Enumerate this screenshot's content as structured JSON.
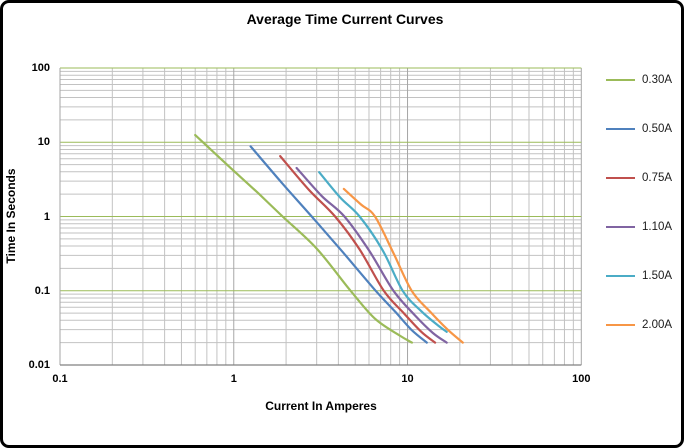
{
  "window": {
    "background": "#ffffff",
    "border_color": "#000000"
  },
  "chart_data": {
    "type": "line",
    "title": "Average Time Current Curves",
    "xlabel": "Current In Amperes",
    "ylabel": "Time In Seconds",
    "x_scale": "log",
    "y_scale": "log",
    "xlim": [
      0.1,
      100
    ],
    "ylim": [
      0.01,
      100
    ],
    "x_ticks": [
      {
        "value": 0.1,
        "label": "0.1"
      },
      {
        "value": 1,
        "label": "1"
      },
      {
        "value": 10,
        "label": "10"
      },
      {
        "value": 100,
        "label": "100"
      }
    ],
    "y_ticks": [
      {
        "value": 100,
        "label": "100"
      },
      {
        "value": 10,
        "label": "10"
      },
      {
        "value": 1,
        "label": "1"
      },
      {
        "value": 0.1,
        "label": "0.1"
      },
      {
        "value": 0.01,
        "label": "0.01"
      }
    ],
    "grid": {
      "on": true,
      "minor_log_steps": [
        2,
        3,
        4,
        5,
        6,
        7,
        8,
        9
      ],
      "major_horizontal_color": "#9BBB59",
      "minor_horizontal_color": "#C2C2C2",
      "major_vertical_color": "#A6A6A6",
      "minor_vertical_color": "#C2C2C2",
      "axis_color": "#808080"
    },
    "legend_position": "right",
    "series": [
      {
        "name": "0.30A",
        "color": "#9BBB59",
        "points": [
          [
            0.6,
            12.5
          ],
          [
            0.95,
            4.6
          ],
          [
            1.4,
            2.0
          ],
          [
            1.91,
            1.0
          ],
          [
            3.0,
            0.37
          ],
          [
            4.7,
            0.1
          ],
          [
            6.5,
            0.042
          ],
          [
            9.0,
            0.025
          ],
          [
            10.6,
            0.02
          ]
        ]
      },
      {
        "name": "0.50A",
        "color": "#4F81BD",
        "points": [
          [
            1.25,
            8.8
          ],
          [
            1.9,
            2.8
          ],
          [
            2.81,
            1.0
          ],
          [
            4.2,
            0.34
          ],
          [
            6.56,
            0.1
          ],
          [
            8.5,
            0.052
          ],
          [
            10.5,
            0.03
          ],
          [
            12.9,
            0.02
          ]
        ]
      },
      {
        "name": "0.75A",
        "color": "#C0504D",
        "points": [
          [
            1.85,
            6.5
          ],
          [
            2.7,
            2.3
          ],
          [
            3.83,
            1.0
          ],
          [
            5.3,
            0.36
          ],
          [
            7.3,
            0.1
          ],
          [
            9.5,
            0.05
          ],
          [
            12.0,
            0.028
          ],
          [
            14.4,
            0.02
          ]
        ]
      },
      {
        "name": "1.10A",
        "color": "#8064A2",
        "points": [
          [
            2.3,
            4.5
          ],
          [
            3.2,
            1.9
          ],
          [
            4.33,
            1.0
          ],
          [
            6.0,
            0.35
          ],
          [
            8.3,
            0.1
          ],
          [
            11.0,
            0.047
          ],
          [
            14.0,
            0.027
          ],
          [
            16.8,
            0.02
          ]
        ]
      },
      {
        "name": "1.50A",
        "color": "#4BACC6",
        "points": [
          [
            3.1,
            3.95
          ],
          [
            4.1,
            1.8
          ],
          [
            5.3,
            1.0
          ],
          [
            7.2,
            0.35
          ],
          [
            9.38,
            0.1
          ],
          [
            12.0,
            0.053
          ],
          [
            15.0,
            0.034
          ],
          [
            16.8,
            0.028
          ]
        ]
      },
      {
        "name": "2.00A",
        "color": "#F79646",
        "points": [
          [
            4.3,
            2.35
          ],
          [
            5.4,
            1.45
          ],
          [
            6.5,
            1.0
          ],
          [
            8.3,
            0.32
          ],
          [
            10.57,
            0.1
          ],
          [
            13.5,
            0.052
          ],
          [
            17.0,
            0.03
          ],
          [
            20.8,
            0.02
          ]
        ]
      }
    ]
  }
}
